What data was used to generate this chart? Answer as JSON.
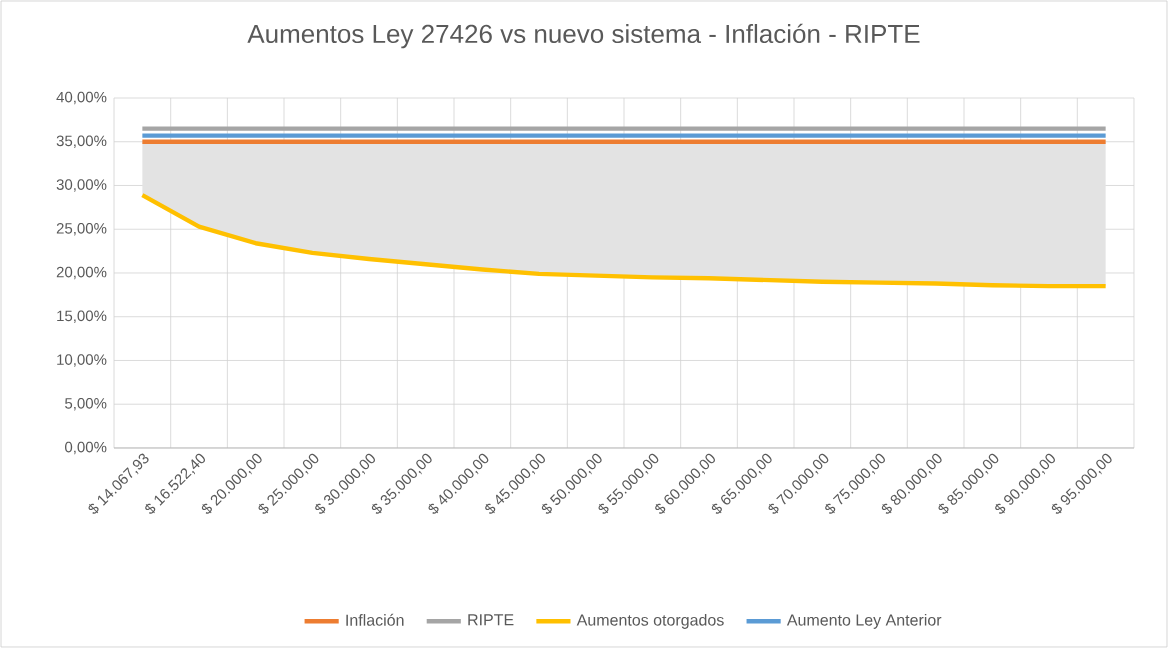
{
  "chart_data": {
    "type": "line",
    "title": "Aumentos Ley 27426 vs nuevo sistema - Inflación - RIPTE",
    "categories": [
      "$ 14.067,93",
      "$ 16.522,40",
      "$ 20.000,00",
      "$ 25.000,00",
      "$ 30.000,00",
      "$ 35.000,00",
      "$ 40.000,00",
      "$ 45.000,00",
      "$ 50.000,00",
      "$ 55.000,00",
      "$ 60.000,00",
      "$ 65.000,00",
      "$ 70.000,00",
      "$ 75.000,00",
      "$ 80.000,00",
      "$ 85.000,00",
      "$ 90.000,00",
      "$ 95.000,00"
    ],
    "series": [
      {
        "name": "Inflación",
        "color": "#ed7d31",
        "values": [
          35.0,
          35.0,
          35.0,
          35.0,
          35.0,
          35.0,
          35.0,
          35.0,
          35.0,
          35.0,
          35.0,
          35.0,
          35.0,
          35.0,
          35.0,
          35.0,
          35.0,
          35.0
        ]
      },
      {
        "name": "RIPTE",
        "color": "#a5a5a5",
        "values": [
          36.5,
          36.5,
          36.5,
          36.5,
          36.5,
          36.5,
          36.5,
          36.5,
          36.5,
          36.5,
          36.5,
          36.5,
          36.5,
          36.5,
          36.5,
          36.5,
          36.5,
          36.5
        ]
      },
      {
        "name": "Aumentos otorgados",
        "color": "#ffc000",
        "values": [
          28.9,
          25.3,
          23.4,
          22.3,
          21.6,
          21.0,
          20.4,
          19.9,
          19.7,
          19.5,
          19.4,
          19.2,
          19.0,
          18.9,
          18.8,
          18.6,
          18.5,
          18.5
        ],
        "lower": [
          28.9,
          25.3,
          23.4,
          22.3,
          21.6,
          21.0,
          20.4,
          19.9,
          19.7,
          19.5,
          19.4,
          19.2,
          19.0,
          18.9,
          18.8,
          18.6,
          18.5,
          18.5
        ],
        "upper": [
          35.0,
          35.0,
          35.0,
          35.0,
          35.0,
          35.0,
          35.0,
          35.0,
          35.0,
          35.0,
          35.0,
          35.0,
          35.0,
          35.0,
          35.0,
          35.0,
          35.0,
          35.0
        ]
      },
      {
        "name": "Aumento Ley Anterior",
        "color": "#5b9bd5",
        "values": [
          35.7,
          35.7,
          35.7,
          35.7,
          35.7,
          35.7,
          35.7,
          35.7,
          35.7,
          35.7,
          35.7,
          35.7,
          35.7,
          35.7,
          35.7,
          35.7,
          35.7,
          35.7
        ]
      }
    ],
    "ylim": [
      0,
      40
    ],
    "yticks": [
      {
        "value": 0,
        "label": "0,00%"
      },
      {
        "value": 5,
        "label": "5,00%"
      },
      {
        "value": 10,
        "label": "10,00%"
      },
      {
        "value": 15,
        "label": "15,00%"
      },
      {
        "value": 20,
        "label": "20,00%"
      },
      {
        "value": 25,
        "label": "25,00%"
      },
      {
        "value": 30,
        "label": "30,00%"
      },
      {
        "value": 35,
        "label": "35,00%"
      },
      {
        "value": 40,
        "label": "40,00%"
      }
    ],
    "grid": true,
    "legend": "bottom",
    "marker": "none",
    "line_style": "solid"
  }
}
